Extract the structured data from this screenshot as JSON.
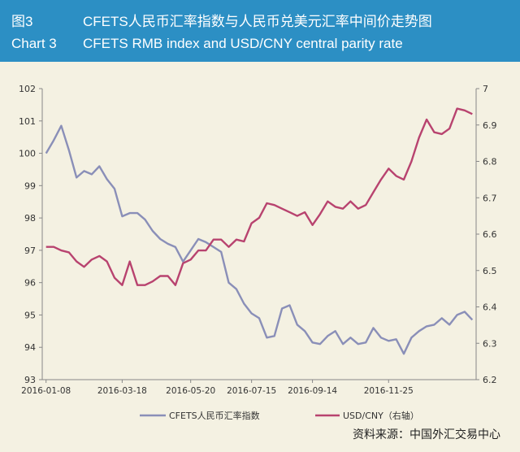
{
  "header": {
    "figure_label_cn": "图3",
    "figure_title_cn": "CFETS人民币汇率指数与人民币兑美元汇率中间价走势图",
    "figure_label_en": "Chart 3",
    "figure_title_en": "CFETS RMB index and USD/CNY central parity rate"
  },
  "source_note": "资料来源：中国外汇交易中心",
  "colors": {
    "header_bg": "#2c8fc4",
    "background": "#f4f1e2",
    "cfets_line": "#8a8fb8",
    "usdcny_line": "#b8436f"
  },
  "chart_data": {
    "type": "line",
    "x_ticks": [
      "2016-01-08",
      "2016-03-18",
      "2016-05-20",
      "2016-07-15",
      "2016-09-14",
      "2016-11-25"
    ],
    "x_tick_positions": [
      0,
      10,
      19,
      27,
      35,
      45
    ],
    "y_left": {
      "ticks": [
        93,
        94,
        95,
        96,
        97,
        98,
        99,
        100,
        101,
        102
      ],
      "range": [
        93,
        102
      ]
    },
    "y_right": {
      "ticks": [
        6.2,
        6.3,
        6.4,
        6.5,
        6.6,
        6.7,
        6.8,
        6.9,
        7
      ],
      "range": [
        6.2,
        7
      ]
    },
    "series": [
      {
        "name": "CFETS人民币汇率指数",
        "axis": "left",
        "values": [
          100.0,
          100.4,
          100.85,
          100.1,
          99.25,
          99.45,
          99.35,
          99.6,
          99.2,
          98.9,
          98.05,
          98.15,
          98.15,
          97.95,
          97.6,
          97.35,
          97.2,
          97.1,
          96.65,
          97.0,
          97.35,
          97.25,
          97.1,
          96.95,
          96.0,
          95.8,
          95.35,
          95.05,
          94.9,
          94.3,
          94.35,
          95.2,
          95.3,
          94.7,
          94.5,
          94.15,
          94.1,
          94.35,
          94.5,
          94.1,
          94.3,
          94.1,
          94.15,
          94.6,
          94.3,
          94.2,
          94.25,
          93.8,
          94.3,
          94.5,
          94.65,
          94.7,
          94.9,
          94.7,
          95.0,
          95.1,
          94.85
        ]
      },
      {
        "name": "USD/CNY（右轴）",
        "axis": "right",
        "values": [
          6.565,
          6.565,
          6.555,
          6.55,
          6.525,
          6.51,
          6.53,
          6.54,
          6.525,
          6.48,
          6.46,
          6.525,
          6.46,
          6.46,
          6.47,
          6.485,
          6.485,
          6.46,
          6.52,
          6.53,
          6.555,
          6.555,
          6.585,
          6.585,
          6.565,
          6.585,
          6.58,
          6.63,
          6.645,
          6.685,
          6.68,
          6.67,
          6.66,
          6.65,
          6.66,
          6.625,
          6.655,
          6.69,
          6.675,
          6.67,
          6.69,
          6.67,
          6.68,
          6.715,
          6.75,
          6.78,
          6.76,
          6.75,
          6.8,
          6.865,
          6.915,
          6.88,
          6.875,
          6.89,
          6.945,
          6.94,
          6.93
        ]
      }
    ]
  }
}
